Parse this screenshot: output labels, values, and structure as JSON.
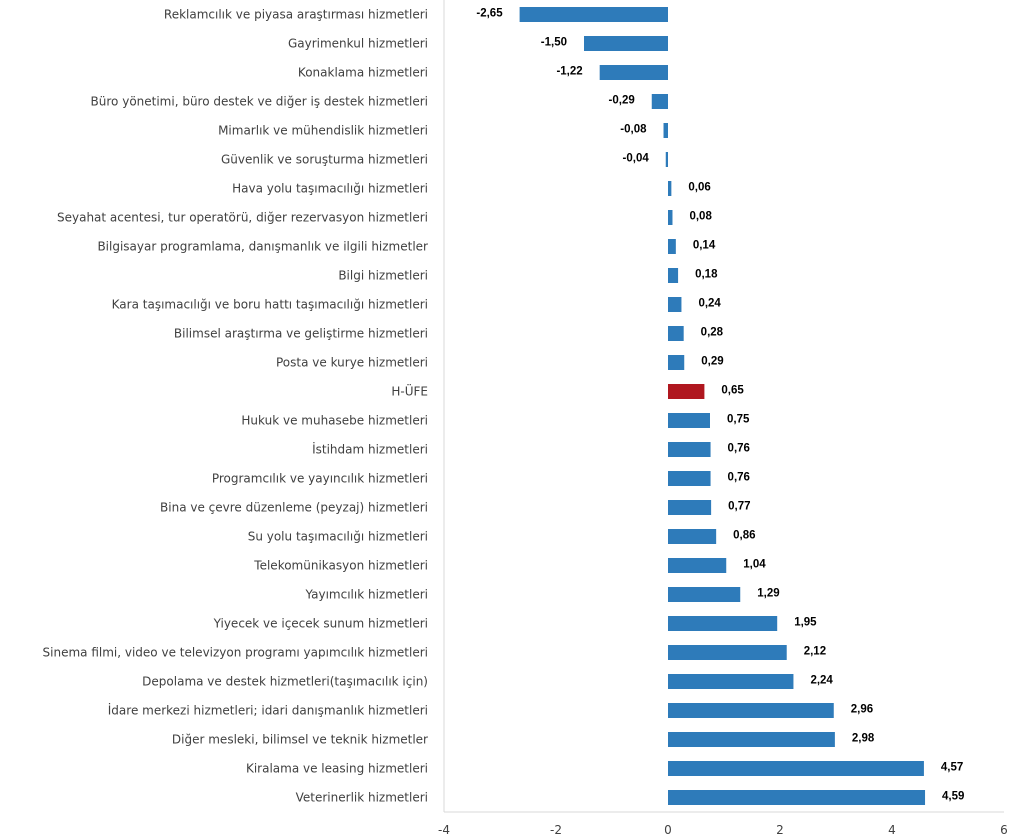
{
  "chart_data": {
    "type": "bar",
    "orientation": "horizontal",
    "title": "",
    "xlabel": "",
    "ylabel": "",
    "xlim": [
      -4,
      6
    ],
    "xticks": [
      -4,
      -2,
      0,
      2,
      4,
      6
    ],
    "xtick_labels": [
      "-4",
      "-2",
      "0",
      "2",
      "4",
      "6"
    ],
    "grid": false,
    "legend": "none",
    "colors": {
      "default": "#2e7bba",
      "highlight": "#b0171f"
    },
    "highlight_category": "H-ÜFE",
    "categories": [
      "Reklamcılık ve piyasa araştırması hizmetleri",
      "Gayrimenkul hizmetleri",
      "Konaklama hizmetleri",
      "Büro yönetimi, büro destek ve diğer iş destek hizmetleri",
      "Mimarlık ve mühendislik hizmetleri",
      "Güvenlik ve soruşturma hizmetleri",
      "Hava yolu taşımacılığı hizmetleri",
      "Seyahat acentesi, tur operatörü, diğer rezervasyon hizmetleri",
      "Bilgisayar programlama, danışmanlık ve ilgili hizmetler",
      "Bilgi hizmetleri",
      "Kara taşımacılığı ve boru hattı taşımacılığı hizmetleri",
      "Bilimsel araştırma ve geliştirme hizmetleri",
      "Posta ve kurye hizmetleri",
      "H-ÜFE",
      "Hukuk ve muhasebe hizmetleri",
      "İstihdam hizmetleri",
      "Programcılık ve yayıncılık hizmetleri",
      "Bina ve çevre düzenleme (peyzaj) hizmetleri",
      "Su yolu taşımacılığı hizmetleri",
      "Telekomünikasyon hizmetleri",
      "Yayımcılık hizmetleri",
      "Yiyecek ve içecek sunum hizmetleri",
      "Sinema filmi, video ve televizyon programı yapımcılık hizmetleri",
      "Depolama ve destek hizmetleri(taşımacılık için)",
      "İdare merkezi hizmetleri; idari danışmanlık hizmetleri",
      "Diğer mesleki, bilimsel ve teknik hizmetler",
      "Kiralama ve leasing hizmetleri",
      "Veterinerlik hizmetleri"
    ],
    "values": [
      -2.65,
      -1.5,
      -1.22,
      -0.29,
      -0.08,
      -0.04,
      0.06,
      0.08,
      0.14,
      0.18,
      0.24,
      0.28,
      0.29,
      0.65,
      0.75,
      0.76,
      0.76,
      0.77,
      0.86,
      1.04,
      1.29,
      1.95,
      2.12,
      2.24,
      2.96,
      2.98,
      4.57,
      4.59
    ],
    "value_labels": [
      "-2,65",
      "-1,50",
      "-1,22",
      "-0,29",
      "-0,08",
      "-0,04",
      "0,06",
      "0,08",
      "0,14",
      "0,18",
      "0,24",
      "0,28",
      "0,29",
      "0,65",
      "0,75",
      "0,76",
      "0,76",
      "0,77",
      "0,86",
      "1,04",
      "1,29",
      "1,95",
      "2,12",
      "2,24",
      "2,96",
      "2,98",
      "4,57",
      "4,59"
    ]
  }
}
